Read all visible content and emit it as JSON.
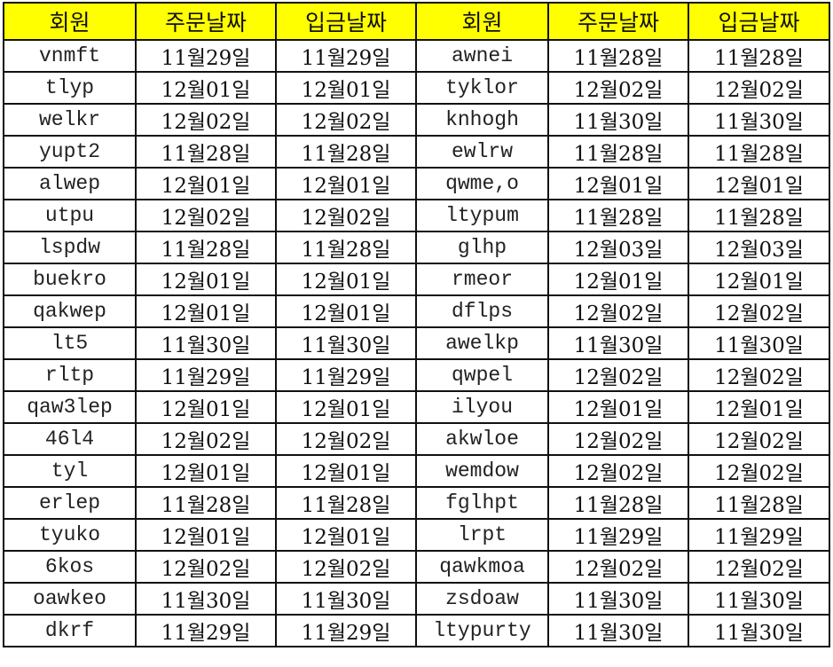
{
  "headers": [
    "회원",
    "주문날짜",
    "입금날짜",
    "회원",
    "주문날짜",
    "입금날짜"
  ],
  "header_color": "#ffff00",
  "rows": [
    [
      "vnmft",
      "11월29일",
      "11월29일",
      "awnei",
      "11월28일",
      "11월28일"
    ],
    [
      "tlyp",
      "12월01일",
      "12월01일",
      "tyklor",
      "12월02일",
      "12월02일"
    ],
    [
      "welkr",
      "12월02일",
      "12월02일",
      "knhogh",
      "11월30일",
      "11월30일"
    ],
    [
      "yupt2",
      "11월28일",
      "11월28일",
      "ewlrw",
      "11월28일",
      "11월28일"
    ],
    [
      "alwep",
      "12월01일",
      "12월01일",
      "qwme,o",
      "12월01일",
      "12월01일"
    ],
    [
      "utpu",
      "12월02일",
      "12월02일",
      "ltypum",
      "11월28일",
      "11월28일"
    ],
    [
      "lspdw",
      "11월28일",
      "11월28일",
      "glhp",
      "12월03일",
      "12월03일"
    ],
    [
      "buekro",
      "12월01일",
      "12월01일",
      "rmeor",
      "12월01일",
      "12월01일"
    ],
    [
      "qakwep",
      "12월01일",
      "12월01일",
      "dflps",
      "12월02일",
      "12월02일"
    ],
    [
      "lt5",
      "11월30일",
      "11월30일",
      "awelkp",
      "11월30일",
      "11월30일"
    ],
    [
      "rltp",
      "11월29일",
      "11월29일",
      "qwpel",
      "12월02일",
      "12월02일"
    ],
    [
      "qaw3lep",
      "12월01일",
      "12월01일",
      "ilyou",
      "12월01일",
      "12월01일"
    ],
    [
      "46l4",
      "12월02일",
      "12월02일",
      "akwloe",
      "12월02일",
      "12월02일"
    ],
    [
      "tyl",
      "12월01일",
      "12월01일",
      "wemdow",
      "12월02일",
      "12월02일"
    ],
    [
      "erlep",
      "11월28일",
      "11월28일",
      "fglhpt",
      "11월28일",
      "11월28일"
    ],
    [
      "tyuko",
      "12월01일",
      "12월01일",
      "lrpt",
      "11월29일",
      "11월29일"
    ],
    [
      "6kos",
      "12월02일",
      "12월02일",
      "qawkmoa",
      "12월02일",
      "12월02일"
    ],
    [
      "oawkeo",
      "11월30일",
      "11월30일",
      "zsdoaw",
      "11월30일",
      "11월30일"
    ],
    [
      "dkrf",
      "11월29일",
      "11월29일",
      "ltypurty",
      "11월30일",
      "11월30일"
    ]
  ]
}
